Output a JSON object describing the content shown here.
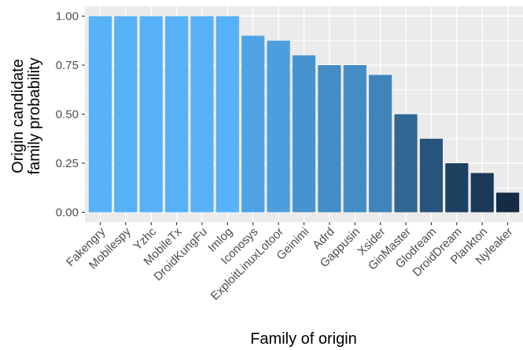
{
  "chart_data": {
    "type": "bar",
    "xlabel": "Family of origin",
    "ylabel_lines": [
      "Origin candidate",
      "family probability"
    ],
    "categories": [
      "Fakengry",
      "Mobilespy",
      "Yzhc",
      "MobileTx",
      "DroidKungFu",
      "Imlog",
      "Iconosys",
      "ExploitLinuxLotoor",
      "Geinimi",
      "Adrd",
      "Gappusin",
      "Xsider",
      "GinMaster",
      "Glodream",
      "DroidDream",
      "Plankton",
      "Nyleaker"
    ],
    "values": [
      1.0,
      1.0,
      1.0,
      1.0,
      1.0,
      1.0,
      0.9,
      0.875,
      0.8,
      0.75,
      0.75,
      0.7,
      0.5,
      0.375,
      0.25,
      0.2,
      0.1
    ],
    "ylim": [
      0,
      1.0
    ],
    "yticks": [
      "0.00",
      "0.25",
      "0.50",
      "0.75",
      "1.00"
    ],
    "ytick_values": [
      0,
      0.25,
      0.5,
      0.75,
      1.0
    ],
    "grid": true,
    "colors": {
      "panel_background": "#ebebeb",
      "grid": "#ffffff",
      "bar_high": "#56B1F7",
      "bar_low": "#132B43"
    }
  }
}
